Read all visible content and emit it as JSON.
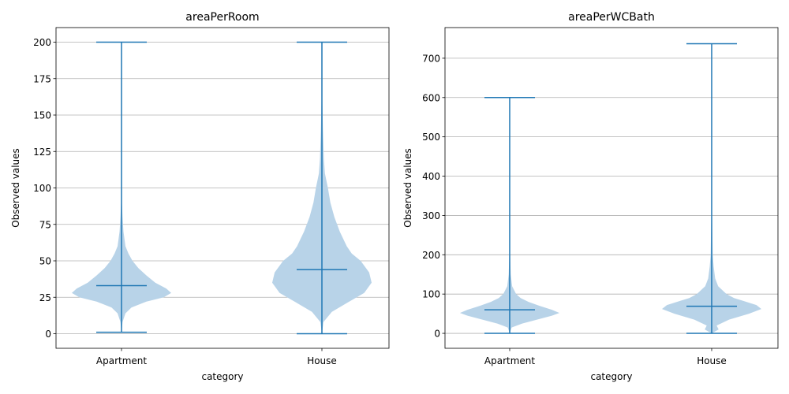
{
  "chart_data": [
    {
      "type": "violin",
      "title": "areaPerRoom",
      "xlabel": "category",
      "ylabel": "Observed values",
      "categories": [
        "Apartment",
        "House"
      ],
      "ylim": [
        -10,
        210
      ],
      "yticks": [
        0,
        25,
        50,
        75,
        100,
        125,
        150,
        175,
        200
      ],
      "grid": "y",
      "colors": {
        "body": "#b8d3e8",
        "lines": "#1f77b4"
      },
      "series": [
        {
          "category": "Apartment",
          "min": 1,
          "median": 33,
          "max": 200,
          "density": [
            [
              1,
              0.0
            ],
            [
              8,
              0.02
            ],
            [
              14,
              0.08
            ],
            [
              18,
              0.2
            ],
            [
              22,
              0.5
            ],
            [
              25,
              0.85
            ],
            [
              28,
              1.0
            ],
            [
              31,
              0.9
            ],
            [
              35,
              0.68
            ],
            [
              40,
              0.5
            ],
            [
              45,
              0.34
            ],
            [
              50,
              0.22
            ],
            [
              55,
              0.14
            ],
            [
              60,
              0.08
            ],
            [
              70,
              0.04
            ],
            [
              80,
              0.02
            ],
            [
              90,
              0.008
            ],
            [
              110,
              0.004
            ],
            [
              150,
              0.002
            ],
            [
              200,
              0.001
            ]
          ]
        },
        {
          "category": "House",
          "min": 0,
          "median": 44,
          "max": 200,
          "density": [
            [
              0,
              0.0
            ],
            [
              8,
              0.03
            ],
            [
              15,
              0.2
            ],
            [
              22,
              0.55
            ],
            [
              28,
              0.85
            ],
            [
              35,
              1.0
            ],
            [
              42,
              0.95
            ],
            [
              50,
              0.78
            ],
            [
              55,
              0.6
            ],
            [
              60,
              0.5
            ],
            [
              70,
              0.36
            ],
            [
              80,
              0.25
            ],
            [
              90,
              0.17
            ],
            [
              100,
              0.12
            ],
            [
              110,
              0.06
            ],
            [
              120,
              0.04
            ],
            [
              140,
              0.02
            ],
            [
              160,
              0.008
            ],
            [
              180,
              0.004
            ],
            [
              200,
              0.002
            ]
          ]
        }
      ]
    },
    {
      "type": "violin",
      "title": "areaPerWCBath",
      "xlabel": "category",
      "ylabel": "Observed values",
      "categories": [
        "Apartment",
        "House"
      ],
      "ylim": [
        -38,
        778
      ],
      "yticks": [
        0,
        100,
        200,
        300,
        400,
        500,
        600,
        700
      ],
      "grid": "y",
      "colors": {
        "body": "#b8d3e8",
        "lines": "#1f77b4"
      },
      "series": [
        {
          "category": "Apartment",
          "min": 0,
          "median": 60,
          "max": 600,
          "density": [
            [
              0,
              0.0
            ],
            [
              15,
              0.04
            ],
            [
              25,
              0.25
            ],
            [
              35,
              0.55
            ],
            [
              45,
              0.85
            ],
            [
              52,
              1.0
            ],
            [
              60,
              0.85
            ],
            [
              70,
              0.6
            ],
            [
              80,
              0.38
            ],
            [
              90,
              0.22
            ],
            [
              100,
              0.13
            ],
            [
              120,
              0.05
            ],
            [
              150,
              0.02
            ],
            [
              200,
              0.008
            ],
            [
              300,
              0.003
            ],
            [
              450,
              0.002
            ],
            [
              600,
              0.001
            ]
          ]
        },
        {
          "category": "House",
          "min": 0,
          "median": 69,
          "max": 737,
          "density": [
            [
              0,
              0.0
            ],
            [
              10,
              0.14
            ],
            [
              20,
              0.1
            ],
            [
              35,
              0.35
            ],
            [
              50,
              0.75
            ],
            [
              62,
              1.0
            ],
            [
              72,
              0.9
            ],
            [
              80,
              0.7
            ],
            [
              90,
              0.45
            ],
            [
              100,
              0.3
            ],
            [
              120,
              0.13
            ],
            [
              140,
              0.07
            ],
            [
              170,
              0.04
            ],
            [
              200,
              0.02
            ],
            [
              300,
              0.008
            ],
            [
              500,
              0.004
            ],
            [
              737,
              0.002
            ]
          ]
        }
      ]
    }
  ]
}
